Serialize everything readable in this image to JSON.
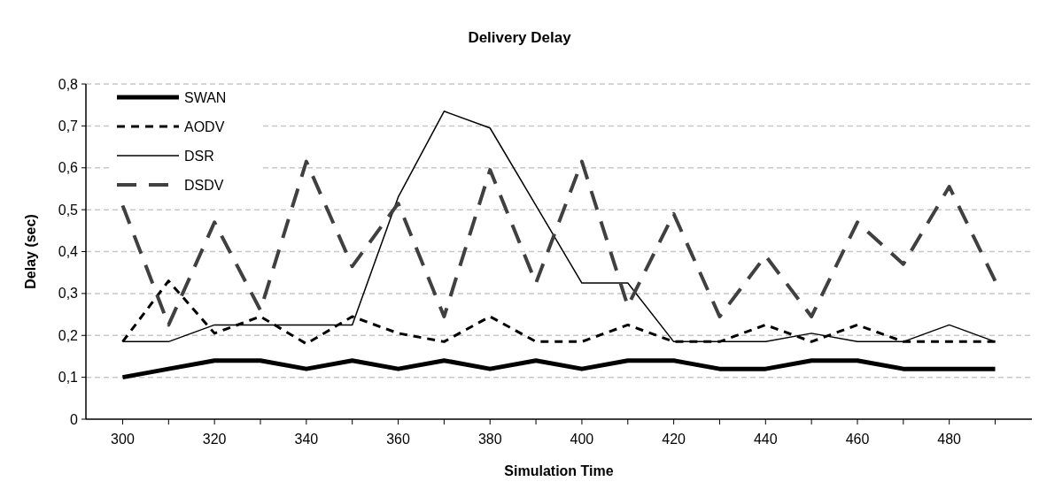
{
  "chart_data": {
    "type": "line",
    "title": "Delivery Delay",
    "xlabel": "Simulation Time",
    "ylabel": "Delay (sec)",
    "categories": [
      "300",
      null,
      "320",
      null,
      "340",
      null,
      "360",
      null,
      "380",
      null,
      "400",
      null,
      "420",
      null,
      "440",
      null,
      "460",
      null,
      "480",
      null
    ],
    "series": [
      {
        "name": "SWAN",
        "color": "#000000",
        "line_style": "solid",
        "values": [
          0.1,
          0.12,
          0.14,
          0.14,
          0.12,
          0.14,
          0.12,
          0.14,
          0.12,
          0.14,
          0.12,
          0.14,
          0.14,
          0.12,
          0.12,
          0.14,
          0.14,
          0.12,
          0.12,
          0.12
        ]
      },
      {
        "name": "AODV",
        "color": "#000000",
        "line_style": "dashed",
        "values": [
          0.185,
          0.33,
          0.205,
          0.245,
          0.18,
          0.245,
          0.205,
          0.185,
          0.245,
          0.185,
          0.185,
          0.225,
          0.185,
          0.185,
          0.225,
          0.185,
          0.225,
          0.185,
          0.185,
          0.185
        ]
      },
      {
        "name": "DSR",
        "color": "#000000",
        "line_style": "solid",
        "values": [
          0.185,
          0.185,
          0.225,
          0.225,
          0.225,
          0.225,
          0.53,
          0.735,
          0.695,
          0.51,
          0.325,
          0.325,
          0.185,
          0.185,
          0.185,
          0.205,
          0.185,
          0.185,
          0.225,
          0.185
        ]
      },
      {
        "name": "DSDV",
        "color": "#404040",
        "line_style": "dashed",
        "values": [
          0.51,
          0.225,
          0.47,
          0.26,
          0.615,
          0.365,
          0.515,
          0.245,
          0.595,
          0.325,
          0.615,
          0.27,
          0.49,
          0.245,
          0.39,
          0.245,
          0.47,
          0.37,
          0.555,
          0.33
        ]
      }
    ],
    "ylim": [
      0,
      0.8
    ],
    "yticks": [
      0,
      {
        "value": 0.1,
        "label": "0,1"
      },
      {
        "value": 0.2,
        "label": "0,2"
      },
      {
        "value": 0.3,
        "label": "0,3"
      },
      {
        "value": 0.4,
        "label": "0,4"
      },
      {
        "value": 0.5,
        "label": "0,5"
      },
      {
        "value": 0.6,
        "label": "0,6"
      },
      {
        "value": 0.7,
        "label": "0,7"
      },
      {
        "value": 0.8,
        "label": "0,8"
      }
    ],
    "grid": "y",
    "legend": "top left"
  }
}
